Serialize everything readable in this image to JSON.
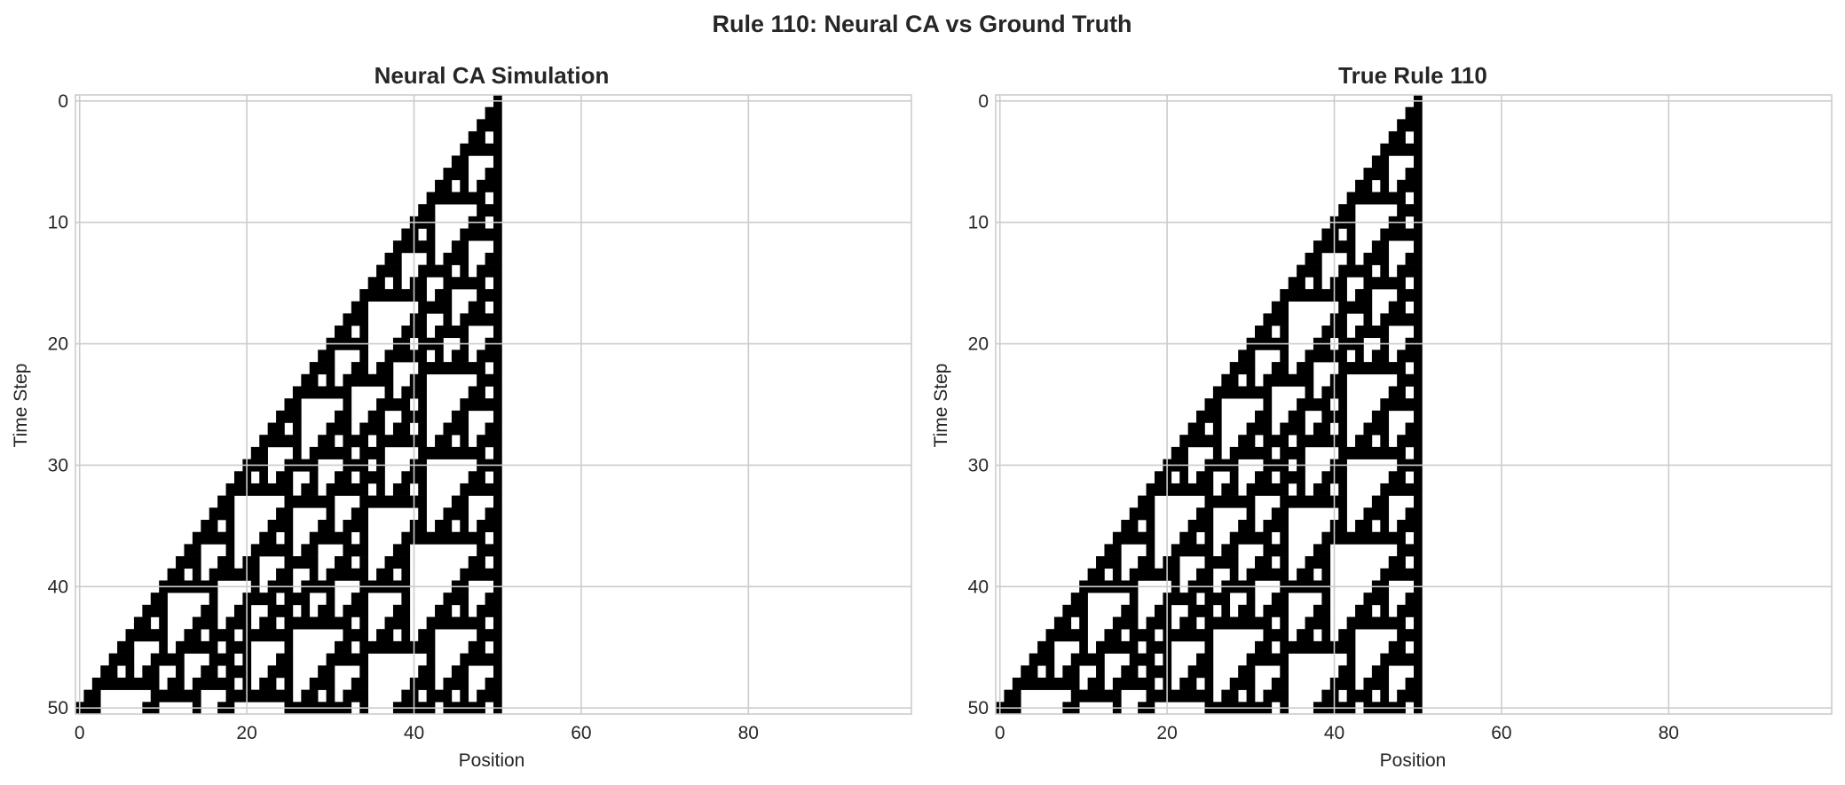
{
  "figure": {
    "suptitle": "Rule 110: Neural CA vs Ground Truth"
  },
  "colors": {
    "alive": "#000000",
    "dead": "#ffffff",
    "grid": "#cccccc",
    "text": "#262626",
    "spine": "#cccccc"
  },
  "chart_data": [
    {
      "type": "heatmap",
      "title": "Neural CA Simulation",
      "xlabel": "Position",
      "ylabel": "Time Step",
      "xlim": [
        -0.5,
        99.5
      ],
      "ylim": [
        50.5,
        -0.5
      ],
      "xticks": [
        0,
        20,
        40,
        60,
        80
      ],
      "yticks": [
        0,
        10,
        20,
        30,
        40,
        50
      ],
      "grid": true,
      "colormap": "binary (1 = black, 0 = white)",
      "rule": 110,
      "width": 100,
      "steps": 51,
      "initial_state": "single live cell at position 50",
      "boundary": "zero"
    },
    {
      "type": "heatmap",
      "title": "True Rule 110",
      "xlabel": "Position",
      "ylabel": "Time Step",
      "xlim": [
        -0.5,
        99.5
      ],
      "ylim": [
        50.5,
        -0.5
      ],
      "xticks": [
        0,
        20,
        40,
        60,
        80
      ],
      "yticks": [
        0,
        10,
        20,
        30,
        40,
        50
      ],
      "grid": true,
      "colormap": "binary (1 = black, 0 = white)",
      "rule": 110,
      "width": 100,
      "steps": 51,
      "initial_state": "single live cell at position 50",
      "boundary": "zero"
    }
  ]
}
